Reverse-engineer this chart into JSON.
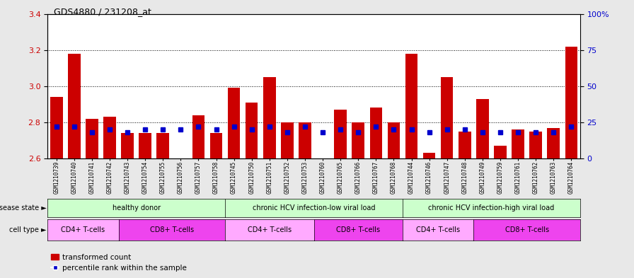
{
  "title": "GDS4880 / 231208_at",
  "samples": [
    "GSM1210739",
    "GSM1210740",
    "GSM1210741",
    "GSM1210742",
    "GSM1210743",
    "GSM1210754",
    "GSM1210755",
    "GSM1210756",
    "GSM1210757",
    "GSM1210758",
    "GSM1210745",
    "GSM1210750",
    "GSM1210751",
    "GSM1210752",
    "GSM1210753",
    "GSM1210760",
    "GSM1210765",
    "GSM1210766",
    "GSM1210767",
    "GSM1210768",
    "GSM1210744",
    "GSM1210746",
    "GSM1210747",
    "GSM1210748",
    "GSM1210749",
    "GSM1210759",
    "GSM1210761",
    "GSM1210762",
    "GSM1210763",
    "GSM1210764"
  ],
  "bar_values": [
    2.94,
    3.18,
    2.82,
    2.83,
    2.74,
    2.74,
    2.74,
    2.6,
    2.84,
    2.74,
    2.99,
    2.91,
    3.05,
    2.8,
    2.8,
    2.6,
    2.87,
    2.8,
    2.88,
    2.8,
    3.18,
    2.63,
    3.05,
    2.75,
    2.93,
    2.67,
    2.76,
    2.75,
    2.77,
    3.22
  ],
  "percentile_values": [
    22,
    22,
    18,
    20,
    18,
    20,
    20,
    20,
    22,
    20,
    22,
    20,
    22,
    18,
    22,
    18,
    20,
    18,
    22,
    20,
    20,
    18,
    20,
    20,
    18,
    18,
    18,
    18,
    18,
    22
  ],
  "bar_color": "#cc0000",
  "dot_color": "#0000cc",
  "ylim_left": [
    2.6,
    3.4
  ],
  "ylim_right": [
    0,
    100
  ],
  "yticks_left": [
    2.6,
    2.8,
    3.0,
    3.2,
    3.4
  ],
  "yticks_right": [
    0,
    25,
    50,
    75,
    100
  ],
  "ytick_labels_right": [
    "0",
    "25",
    "50",
    "75",
    "100%"
  ],
  "hline_values": [
    2.8,
    3.0,
    3.2
  ],
  "disease_groups": [
    {
      "label": "healthy donor",
      "start": 0,
      "end": 9
    },
    {
      "label": "chronic HCV infection-low viral load",
      "start": 10,
      "end": 19
    },
    {
      "label": "chronic HCV infection-high viral load",
      "start": 20,
      "end": 29
    }
  ],
  "cell_type_groups": [
    {
      "label": "CD4+ T-cells",
      "start": 0,
      "end": 3,
      "type": "cd4"
    },
    {
      "label": "CD8+ T-cells",
      "start": 4,
      "end": 9,
      "type": "cd8"
    },
    {
      "label": "CD4+ T-cells",
      "start": 10,
      "end": 14,
      "type": "cd4"
    },
    {
      "label": "CD8+ T-cells",
      "start": 15,
      "end": 19,
      "type": "cd8"
    },
    {
      "label": "CD4+ T-cells",
      "start": 20,
      "end": 23,
      "type": "cd4"
    },
    {
      "label": "CD8+ T-cells",
      "start": 24,
      "end": 29,
      "type": "cd8"
    }
  ],
  "disease_state_label": "disease state",
  "cell_type_label": "cell type",
  "legend_bar_label": "transformed count",
  "legend_dot_label": "percentile rank within the sample",
  "ds_color": "#ccffcc",
  "ct_cd4_color": "#ffaaff",
  "ct_cd8_color": "#ee44ee",
  "fig_bg_color": "#e8e8e8",
  "plot_bg_color": "#ffffff",
  "label_row_bg": "#d8d8d8"
}
